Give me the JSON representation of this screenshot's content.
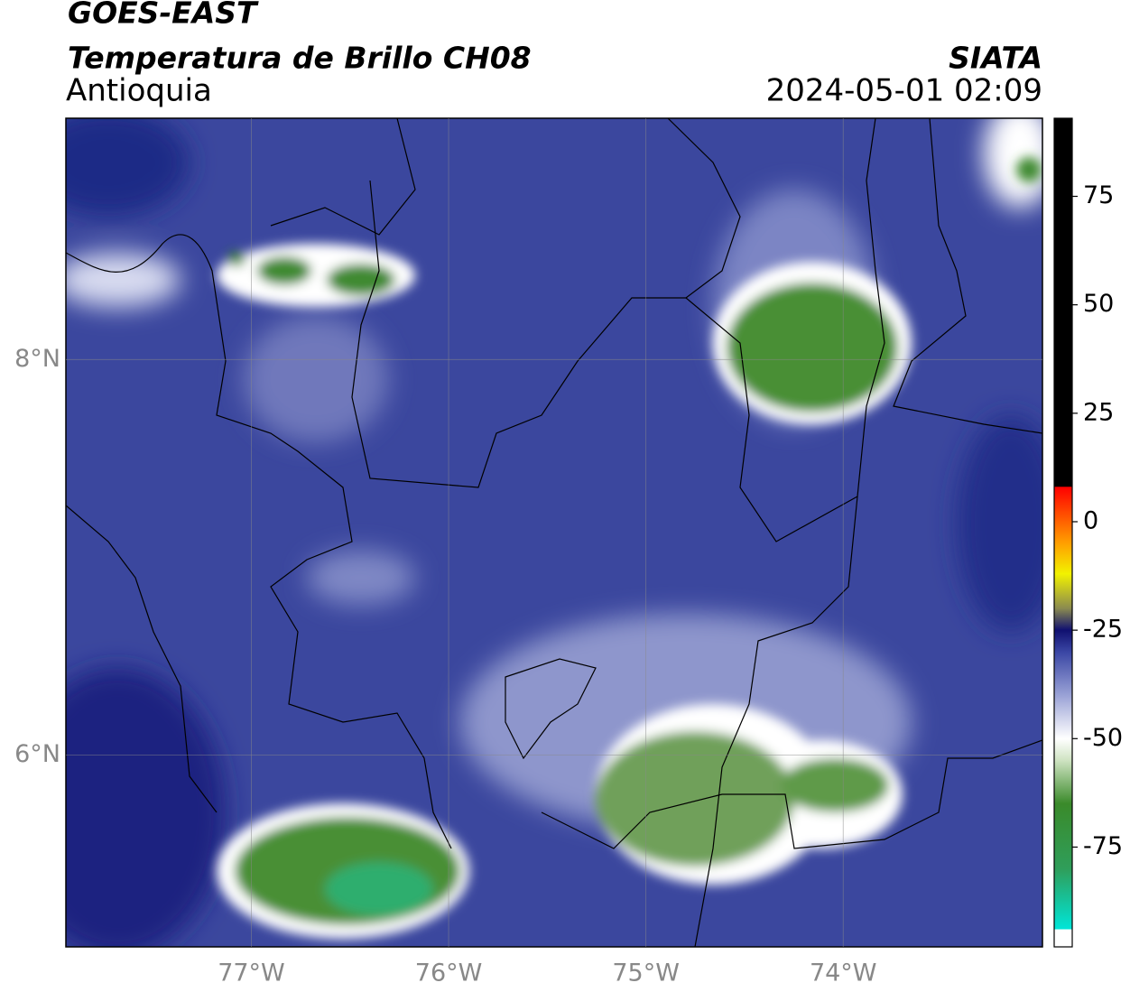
{
  "header": {
    "title": "GOES-EAST",
    "subtitle": "Temperatura de Brillo CH08",
    "region": "Antioquia",
    "source": "SIATA",
    "datetime": "2024-05-01 02:09"
  },
  "map": {
    "lonlim": [
      -77.94,
      -72.99
    ],
    "latlim": [
      5.03,
      9.22
    ],
    "lon_ticks": [
      {
        "value": -77,
        "label": "77°W"
      },
      {
        "value": -76,
        "label": "76°W"
      },
      {
        "value": -75,
        "label": "75°W"
      },
      {
        "value": -74,
        "label": "74°W"
      }
    ],
    "lat_ticks": [
      {
        "value": 8,
        "label": "8°N"
      },
      {
        "value": 6,
        "label": "6°N"
      }
    ],
    "grid": true
  },
  "colorbar": {
    "lim": [
      -98,
      93
    ],
    "ticks": [
      75,
      50,
      25,
      0,
      -25,
      -50,
      -75
    ],
    "stops": [
      {
        "value": -98,
        "color": "#ffffff"
      },
      {
        "value": -94,
        "color": "#ffffff"
      },
      {
        "value": -93.9,
        "color": "#00e5d8"
      },
      {
        "value": -80,
        "color": "#2f9e5a"
      },
      {
        "value": -65,
        "color": "#3a8a2a"
      },
      {
        "value": -55,
        "color": "#cfe3c2"
      },
      {
        "value": -50,
        "color": "#ffffff"
      },
      {
        "value": -40,
        "color": "#9aa2d6"
      },
      {
        "value": -30,
        "color": "#3a46a4"
      },
      {
        "value": -25,
        "color": "#101070"
      },
      {
        "value": -20,
        "color": "#8a8a50"
      },
      {
        "value": -12,
        "color": "#f2f200"
      },
      {
        "value": -5,
        "color": "#ffa000"
      },
      {
        "value": 8,
        "color": "#ff0000"
      },
      {
        "value": 8.1,
        "color": "#000000"
      },
      {
        "value": 93,
        "color": "#000000"
      }
    ]
  }
}
